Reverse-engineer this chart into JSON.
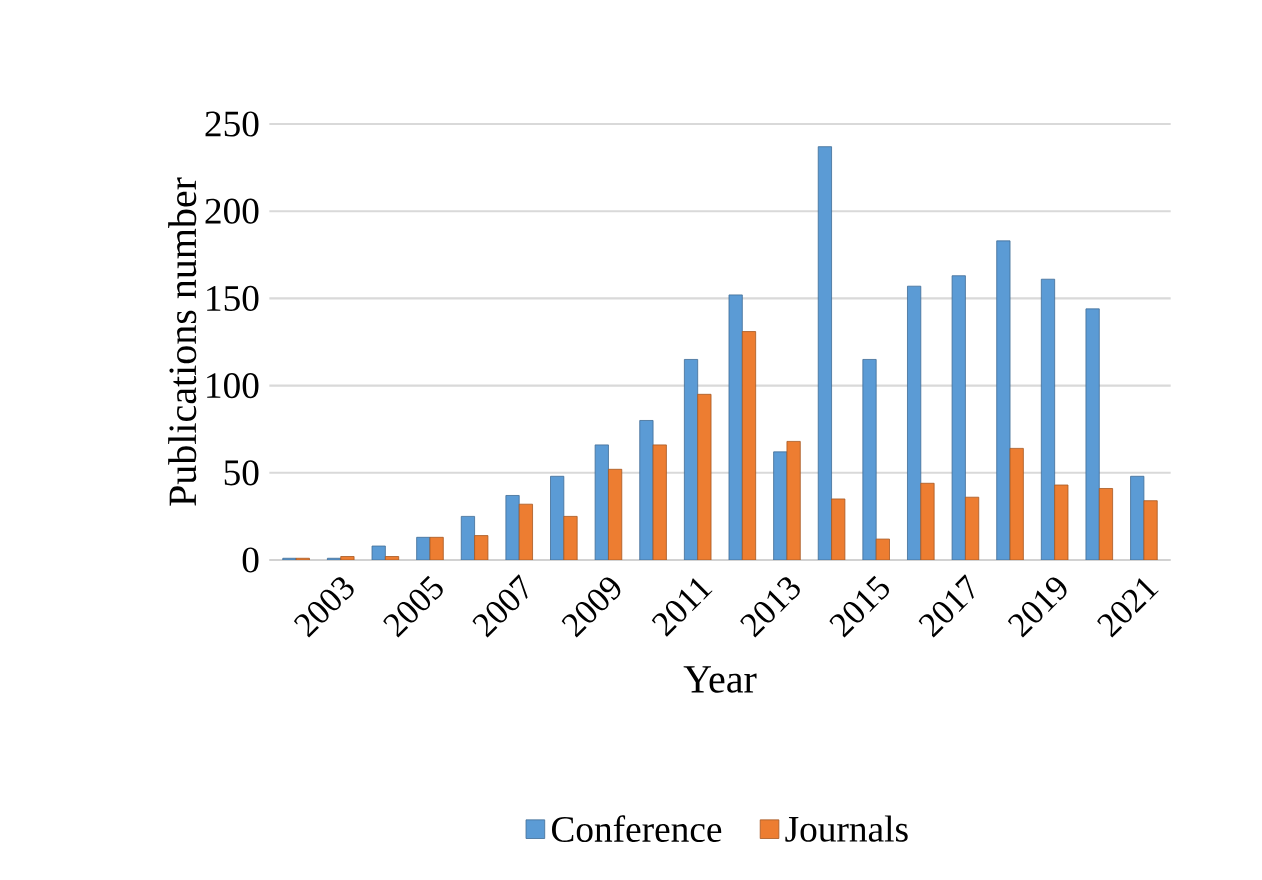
{
  "chart_data": {
    "type": "bar",
    "xlabel": "Year",
    "ylabel": "Publications number",
    "categories": [
      null,
      "2003",
      null,
      "2005",
      null,
      "2007",
      null,
      "2009",
      null,
      "2011",
      null,
      "2013",
      null,
      "2015",
      null,
      "2017",
      null,
      "2019",
      null,
      "2021"
    ],
    "series": [
      {
        "name": "Conference",
        "color": "#5b9bd5",
        "values": [
          1,
          1,
          8,
          13,
          25,
          37,
          48,
          66,
          80,
          115,
          152,
          62,
          237,
          115,
          157,
          163,
          183,
          161,
          144,
          48
        ]
      },
      {
        "name": "Journals",
        "color": "#ed7d31",
        "values": [
          1,
          2,
          2,
          13,
          14,
          32,
          25,
          52,
          66,
          95,
          131,
          68,
          35,
          12,
          44,
          36,
          64,
          43,
          41,
          34
        ]
      }
    ],
    "ylim": [
      0,
      250
    ],
    "yticks": [
      0,
      50,
      100,
      150,
      200,
      250
    ],
    "grid": "y",
    "legend": "bottom"
  }
}
